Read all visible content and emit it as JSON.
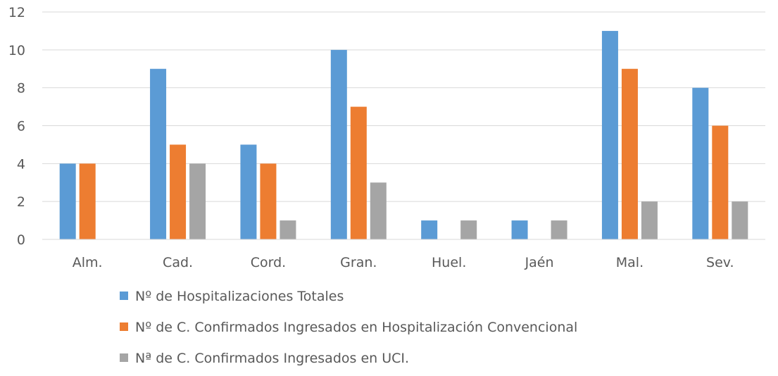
{
  "chart_data": {
    "type": "bar",
    "categories": [
      "Alm.",
      "Cad.",
      "Cord.",
      "Gran.",
      "Huel.",
      "Jaén",
      "Mal.",
      "Sev."
    ],
    "series": [
      {
        "name": "Nº de Hospitalizaciones Totales",
        "color": "#5b9bd5",
        "values": [
          4,
          9,
          5,
          10,
          1,
          1,
          11,
          8
        ]
      },
      {
        "name": "Nº de C. Confirmados Ingresados en Hospitalización Convencional",
        "color": "#ed7d31",
        "values": [
          4,
          5,
          4,
          7,
          0,
          0,
          9,
          6
        ]
      },
      {
        "name": "Nª de C. Confirmados Ingresados en UCI.",
        "color": "#a5a5a5",
        "values": [
          0,
          4,
          1,
          3,
          1,
          1,
          2,
          2
        ]
      }
    ],
    "ylim": [
      0,
      12
    ],
    "yticks": [
      0,
      2,
      4,
      6,
      8,
      10,
      12
    ],
    "grid": true,
    "legend_position": "bottom",
    "title": "",
    "xlabel": "",
    "ylabel": ""
  }
}
